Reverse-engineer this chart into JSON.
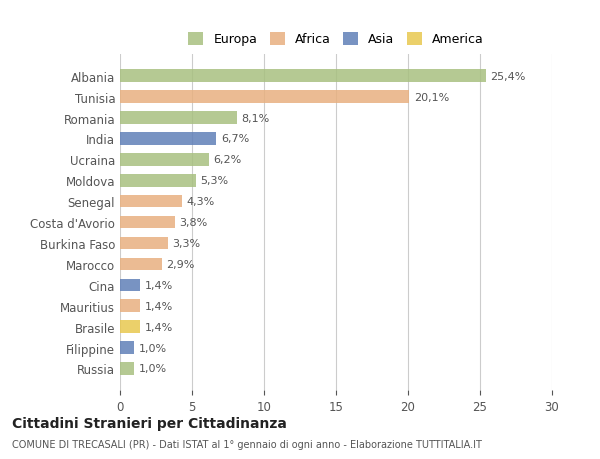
{
  "countries": [
    "Albania",
    "Tunisia",
    "Romania",
    "India",
    "Ucraina",
    "Moldova",
    "Senegal",
    "Costa d'Avorio",
    "Burkina Faso",
    "Marocco",
    "Cina",
    "Mauritius",
    "Brasile",
    "Filippine",
    "Russia"
  ],
  "values": [
    25.4,
    20.1,
    8.1,
    6.7,
    6.2,
    5.3,
    4.3,
    3.8,
    3.3,
    2.9,
    1.4,
    1.4,
    1.4,
    1.0,
    1.0
  ],
  "labels": [
    "25,4%",
    "20,1%",
    "8,1%",
    "6,7%",
    "6,2%",
    "5,3%",
    "4,3%",
    "3,8%",
    "3,3%",
    "2,9%",
    "1,4%",
    "1,4%",
    "1,4%",
    "1,0%",
    "1,0%"
  ],
  "colors": [
    "#a8c080",
    "#e8b080",
    "#a8c080",
    "#6080b8",
    "#a8c080",
    "#a8c080",
    "#e8b080",
    "#e8b080",
    "#e8b080",
    "#e8b080",
    "#6080b8",
    "#e8b080",
    "#e8c850",
    "#6080b8",
    "#a8c080"
  ],
  "legend_labels": [
    "Europa",
    "Africa",
    "Asia",
    "America"
  ],
  "legend_colors": [
    "#a8c080",
    "#e8b080",
    "#6080b8",
    "#e8c850"
  ],
  "title": "Cittadini Stranieri per Cittadinanza",
  "subtitle": "COMUNE DI TRECASALI (PR) - Dati ISTAT al 1° gennaio di ogni anno - Elaborazione TUTTITALIA.IT",
  "xlim": [
    0,
    30
  ],
  "xticks": [
    0,
    5,
    10,
    15,
    20,
    25,
    30
  ],
  "background_color": "#ffffff",
  "grid_color": "#cccccc"
}
